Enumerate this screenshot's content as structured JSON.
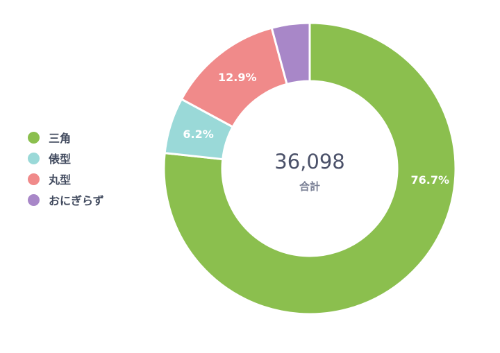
{
  "chart_data": {
    "type": "pie",
    "donut": true,
    "categories": [
      "三角",
      "俵型",
      "丸型",
      "おにぎらず"
    ],
    "values": [
      76.7,
      6.2,
      12.9,
      4.2
    ],
    "labels": [
      "76.7%",
      "6.2%",
      "12.9%",
      ""
    ],
    "colors": [
      "#8bbf4e",
      "#9ad9d8",
      "#f08a8a",
      "#a887c8"
    ],
    "start": "top",
    "direction": "clockwise",
    "legend": "left",
    "total": "36,098",
    "total_caption": "合計"
  }
}
